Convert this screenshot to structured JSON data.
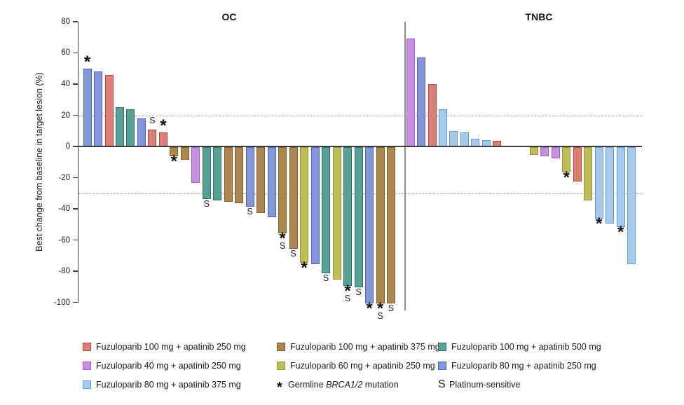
{
  "figure": {
    "panel_left_title": "OC",
    "panel_right_title": "TNBC"
  },
  "chart_data": {
    "type": "bar",
    "subtype": "waterfall",
    "ylabel": "Best change from baseline in target lesion (%)",
    "ylim": [
      -100,
      80
    ],
    "yticks": [
      80,
      60,
      40,
      20,
      0,
      -20,
      -40,
      -60,
      -80,
      -100
    ],
    "reference_lines": [
      20,
      -30
    ],
    "grid": false,
    "legend_position": "bottom",
    "groups": {
      "fuzu100_apa250": {
        "label": "Fuzuloparib 100 mg + apatinib 250 mg",
        "fill": "#db7f76",
        "stroke": "#c1463c"
      },
      "fuzu40_apa250": {
        "label": "Fuzuloparib 40 mg + apatinib 250 mg",
        "fill": "#c490e2",
        "stroke": "#aa55e0"
      },
      "fuzu80_apa375": {
        "label": "Fuzuloparib 80 mg + apatinib 375 mg",
        "fill": "#a5caee",
        "stroke": "#5d9bd8"
      },
      "fuzu100_apa375": {
        "label": "Fuzuloparib 100 mg + apatinib 375 mg",
        "fill": "#ad874f",
        "stroke": "#7d5c29"
      },
      "fuzu60_apa250": {
        "label": "Fuzuloparib 60 mg + apatinib 250 mg",
        "fill": "#bdbe57",
        "stroke": "#94952f"
      },
      "fuzu100_apa500": {
        "label": "Fuzuloparib 100 mg + apatinib 500 mg",
        "fill": "#57a197",
        "stroke": "#2f7168"
      },
      "fuzu80_apa250": {
        "label": "Fuzuloparib 80 mg + apatinib 250 mg",
        "fill": "#8397d8",
        "stroke": "#505fce"
      }
    },
    "markers": {
      "star_symbol": "*",
      "star_label_prefix": "Germline ",
      "star_label_italic": "BRCA1/2",
      "star_label_suffix": " mutation",
      "s_symbol": "S",
      "s_label": "Platinum-sensitive"
    },
    "panels": [
      {
        "id": "oc",
        "title": "OC",
        "bars": [
          {
            "value": 50,
            "group": "fuzu80_apa250",
            "star": true
          },
          {
            "value": 48,
            "group": "fuzu80_apa250"
          },
          {
            "value": 46,
            "group": "fuzu100_apa250"
          },
          {
            "value": 25,
            "group": "fuzu100_apa500"
          },
          {
            "value": 24,
            "group": "fuzu100_apa500"
          },
          {
            "value": 18,
            "group": "fuzu80_apa250"
          },
          {
            "value": 11,
            "group": "fuzu100_apa250",
            "s": true
          },
          {
            "value": 9,
            "group": "fuzu100_apa250",
            "star": true
          },
          {
            "value": -6,
            "group": "fuzu100_apa375",
            "star": true
          },
          {
            "value": -8,
            "group": "fuzu100_apa375"
          },
          {
            "value": -23,
            "group": "fuzu40_apa250"
          },
          {
            "value": -33,
            "group": "fuzu100_apa500",
            "s": true
          },
          {
            "value": -34,
            "group": "fuzu100_apa500"
          },
          {
            "value": -35,
            "group": "fuzu100_apa375"
          },
          {
            "value": -36,
            "group": "fuzu100_apa375"
          },
          {
            "value": -38,
            "group": "fuzu80_apa250",
            "s": true
          },
          {
            "value": -42,
            "group": "fuzu100_apa375"
          },
          {
            "value": -45,
            "group": "fuzu80_apa250"
          },
          {
            "value": -55,
            "group": "fuzu100_apa375",
            "star": true,
            "s": true
          },
          {
            "value": -65,
            "group": "fuzu100_apa375",
            "s": true
          },
          {
            "value": -74,
            "group": "fuzu60_apa250",
            "star": true
          },
          {
            "value": -75,
            "group": "fuzu80_apa250"
          },
          {
            "value": -81,
            "group": "fuzu100_apa500",
            "s": true
          },
          {
            "value": -85,
            "group": "fuzu60_apa250"
          },
          {
            "value": -89,
            "group": "fuzu100_apa500",
            "star": true,
            "s": true
          },
          {
            "value": -90,
            "group": "fuzu100_apa500",
            "s": true
          },
          {
            "value": -100,
            "group": "fuzu80_apa250",
            "star": true
          },
          {
            "value": -100,
            "group": "fuzu100_apa375",
            "star": true,
            "s": true
          },
          {
            "value": -100,
            "group": "fuzu100_apa375",
            "s": true
          }
        ]
      },
      {
        "id": "tnbc",
        "title": "TNBC",
        "gap_after": 9,
        "bars": [
          {
            "value": 69,
            "group": "fuzu40_apa250"
          },
          {
            "value": 57,
            "group": "fuzu80_apa250"
          },
          {
            "value": 40,
            "group": "fuzu100_apa250"
          },
          {
            "value": 24,
            "group": "fuzu80_apa375"
          },
          {
            "value": 10,
            "group": "fuzu80_apa375"
          },
          {
            "value": 9,
            "group": "fuzu80_apa375"
          },
          {
            "value": 5,
            "group": "fuzu80_apa375"
          },
          {
            "value": 4,
            "group": "fuzu80_apa375"
          },
          {
            "value": 3.5,
            "group": "fuzu100_apa250"
          },
          {
            "value": -5,
            "group": "fuzu60_apa250"
          },
          {
            "value": -6,
            "group": "fuzu40_apa250"
          },
          {
            "value": -7,
            "group": "fuzu40_apa250"
          },
          {
            "value": -16,
            "group": "fuzu60_apa250",
            "star": true
          },
          {
            "value": -22,
            "group": "fuzu100_apa250"
          },
          {
            "value": -34,
            "group": "fuzu60_apa250"
          },
          {
            "value": -46,
            "group": "fuzu80_apa375",
            "star": true
          },
          {
            "value": -49,
            "group": "fuzu80_apa375"
          },
          {
            "value": -51,
            "group": "fuzu80_apa375",
            "star": true
          },
          {
            "value": -75,
            "group": "fuzu80_apa375"
          }
        ]
      }
    ]
  }
}
